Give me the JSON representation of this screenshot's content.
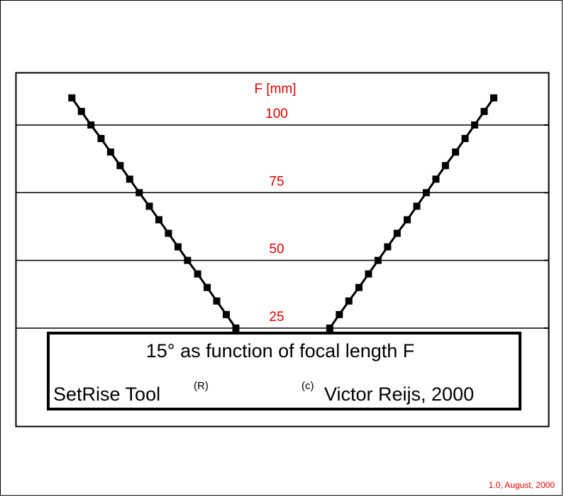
{
  "chart_data": {
    "type": "line",
    "title": "15° as function of focal length F",
    "y_label": "F [mm]",
    "annotations": [
      "SetRise Tool",
      "(R)",
      "(c)",
      "Victor Reijs, 2000"
    ],
    "xlim": [
      0,
      100
    ],
    "ylim": [
      -11.2,
      119.4
    ],
    "yticks": [
      25,
      50,
      75,
      100
    ],
    "grid": true,
    "series": [
      {
        "color": "#000000",
        "x": [
          10.2,
          12.0,
          13.8,
          15.7,
          17.5,
          19.3,
          21.1,
          22.9,
          24.8,
          26.6,
          28.4,
          30.2,
          32.0,
          33.9,
          35.7,
          37.5,
          39.3,
          41.1
        ],
        "values": [
          110,
          105,
          100,
          95,
          90,
          85,
          80,
          75,
          70,
          65,
          60,
          55,
          50,
          45,
          40,
          35,
          30,
          25
        ]
      },
      {
        "color": "#000000",
        "x": [
          58.8,
          60.6,
          62.4,
          64.3,
          66.1,
          67.9,
          69.7,
          71.5,
          73.4,
          75.2,
          77.0,
          78.8,
          80.6,
          82.5,
          84.3,
          86.1,
          87.9,
          89.7
        ],
        "values": [
          25,
          30,
          35,
          40,
          45,
          50,
          55,
          60,
          65,
          70,
          75,
          80,
          85,
          90,
          95,
          100,
          105,
          110
        ]
      }
    ]
  },
  "version": "1.0, August, 2000"
}
